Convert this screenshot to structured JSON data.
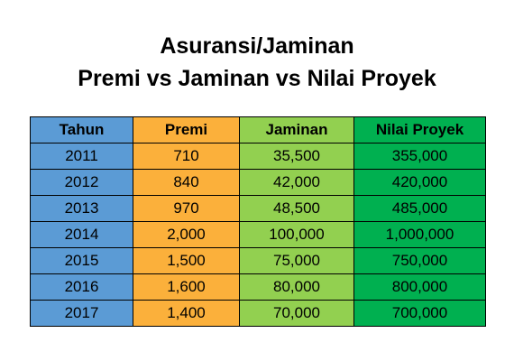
{
  "title_line1": "Asuransi/Jaminan",
  "title_line2": "Premi vs Jaminan vs Nilai Proyek",
  "colors": {
    "tahun": "#5b9bd5",
    "premi": "#fbb03b",
    "jaminan": "#92d050",
    "nilai": "#00b050"
  },
  "chart_data": {
    "type": "table",
    "title": "Asuransi/Jaminan Premi vs Jaminan vs Nilai Proyek",
    "columns": [
      "Tahun",
      "Premi",
      "Jaminan",
      "Nilai Proyek"
    ],
    "rows": [
      [
        "2011",
        "710",
        "35,500",
        "355,000"
      ],
      [
        "2012",
        "840",
        "42,000",
        "420,000"
      ],
      [
        "2013",
        "970",
        "48,500",
        "485,000"
      ],
      [
        "2014",
        "2,000",
        "100,000",
        "1,000,000"
      ],
      [
        "2015",
        "1,500",
        "75,000",
        "750,000"
      ],
      [
        "2016",
        "1,600",
        "80,000",
        "800,000"
      ],
      [
        "2017",
        "1,400",
        "70,000",
        "700,000"
      ]
    ]
  }
}
